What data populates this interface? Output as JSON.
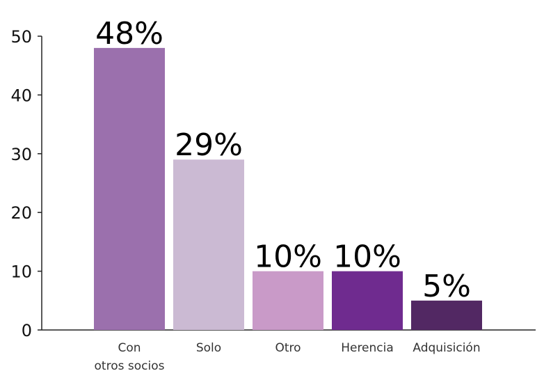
{
  "chart_data": {
    "type": "bar",
    "title": "",
    "xlabel": "",
    "ylabel": "",
    "ylim": [
      0,
      50
    ],
    "yticks": [
      0,
      10,
      20,
      30,
      40,
      50
    ],
    "grid": false,
    "categories": [
      [
        "Con",
        "otros socios"
      ],
      [
        "Solo"
      ],
      [
        "Otro"
      ],
      [
        "Herencia"
      ],
      [
        "Adquisición"
      ]
    ],
    "values": [
      48,
      29,
      10,
      10,
      5
    ],
    "data_labels": [
      "48%",
      "29%",
      "10%",
      "10%",
      "5%"
    ],
    "colors": [
      "#9b70ad",
      "#cbbad3",
      "#c99ac8",
      "#6f2b8f",
      "#522863"
    ]
  }
}
